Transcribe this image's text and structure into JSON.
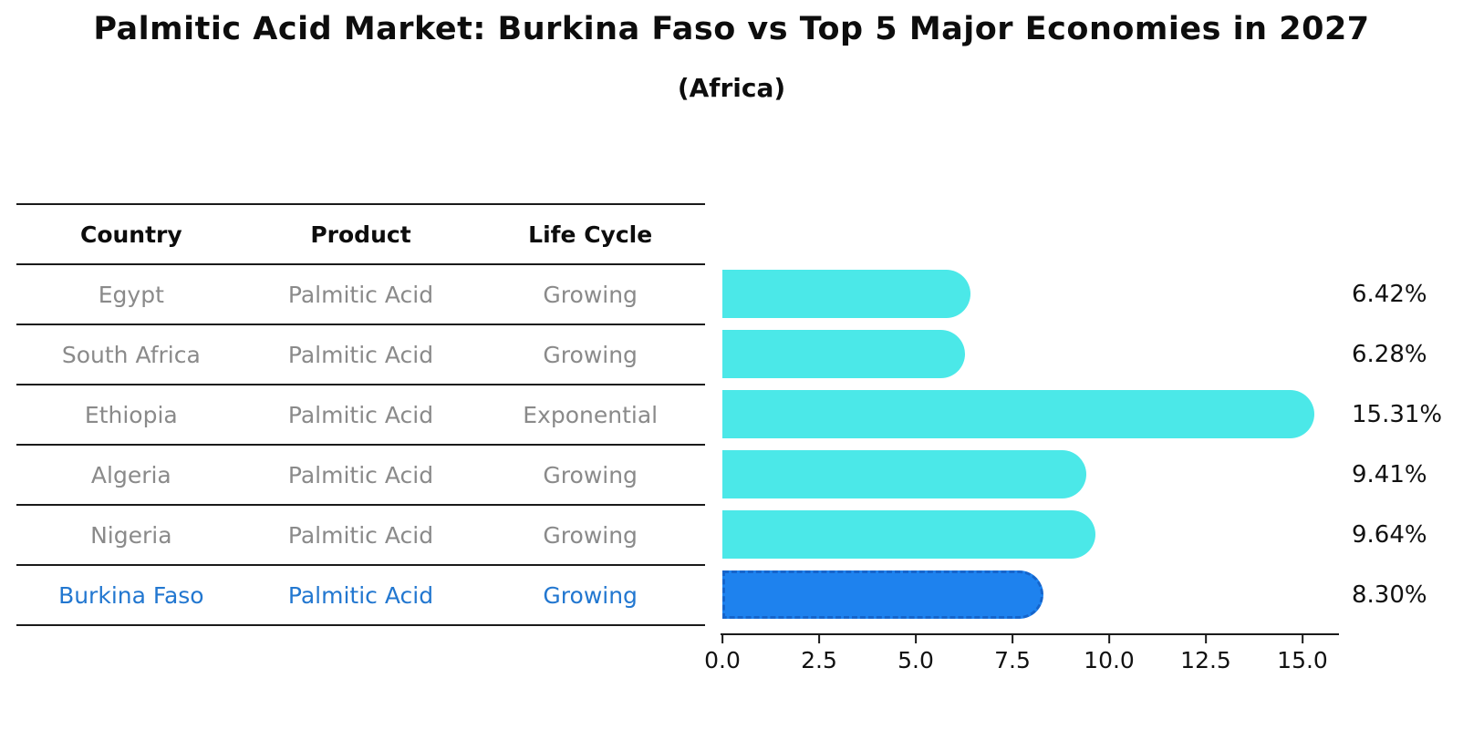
{
  "title": "Palmitic Acid Market: Burkina Faso vs Top 5 Major Economies in 2027",
  "subtitle": "(Africa)",
  "table": {
    "headers": [
      "Country",
      "Product",
      "Life Cycle"
    ],
    "rows": [
      {
        "country": "Egypt",
        "product": "Palmitic Acid",
        "life_cycle": "Growing",
        "highlight": false
      },
      {
        "country": "South Africa",
        "product": "Palmitic Acid",
        "life_cycle": "Growing",
        "highlight": false
      },
      {
        "country": "Ethiopia",
        "product": "Palmitic Acid",
        "life_cycle": "Exponential",
        "highlight": false
      },
      {
        "country": "Algeria",
        "product": "Palmitic Acid",
        "life_cycle": "Growing",
        "highlight": false
      },
      {
        "country": "Nigeria",
        "product": "Palmitic Acid",
        "life_cycle": "Growing",
        "highlight": false
      },
      {
        "country": "Burkina Faso",
        "product": "Palmitic Acid",
        "life_cycle": "Growing",
        "highlight": true
      }
    ]
  },
  "chart_data": {
    "type": "bar",
    "orientation": "horizontal",
    "title": "Palmitic Acid Market: Burkina Faso vs Top 5 Major Economies in 2027 (Africa)",
    "categories": [
      "Egypt",
      "South Africa",
      "Ethiopia",
      "Algeria",
      "Nigeria",
      "Burkina Faso"
    ],
    "values": [
      6.42,
      6.28,
      15.31,
      9.41,
      9.64,
      8.3
    ],
    "value_labels": [
      "6.42%",
      "6.28%",
      "15.31%",
      "9.41%",
      "9.64%",
      "8.30%"
    ],
    "x_ticks": [
      "0.0",
      "2.5",
      "5.0",
      "7.5",
      "10.0",
      "12.5",
      "15.0"
    ],
    "tick_values": [
      0,
      2.5,
      5,
      7.5,
      10,
      12.5,
      15
    ],
    "xlim": [
      0,
      16
    ],
    "grid": false,
    "legend": false,
    "bar_color": "#4BE8E8",
    "highlight_bar_color": "#1E82EE",
    "highlight_bar_border": "#1565CC",
    "highlight_index": 5
  },
  "colors": {
    "background": "#FFFFFF",
    "text": "#111111",
    "muted_text": "#8A8A8A",
    "highlight_text": "#2277D0",
    "rule": "#1A1A1A"
  }
}
